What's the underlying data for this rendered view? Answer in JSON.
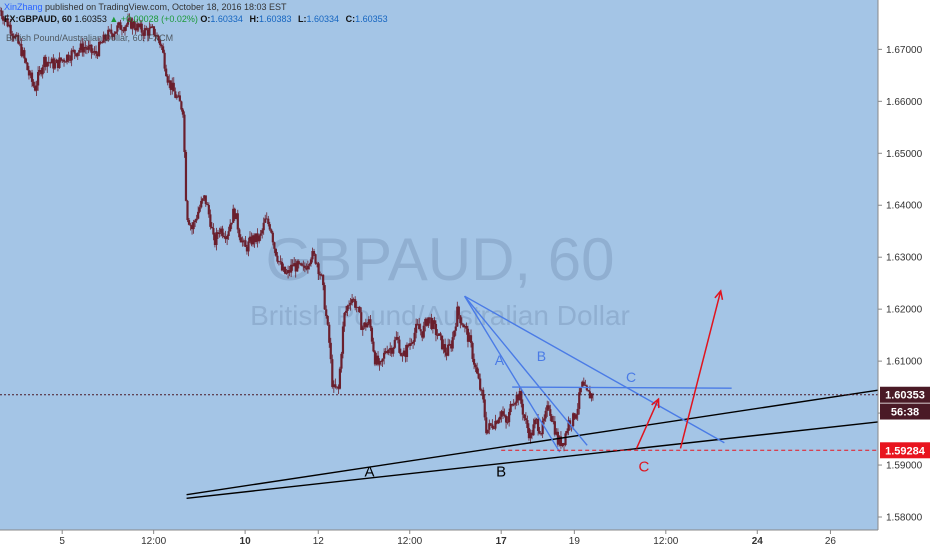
{
  "header": {
    "author": "XinZhang",
    "published": "published on TradingView.com, October 18, 2016 18:03 EST",
    "symbol": "FX:GBPAUD, 60",
    "last": "1.60353",
    "change": "▲ +0.00028 (+0.02%)",
    "open_label": "O:",
    "open": "1.60334",
    "high_label": "H:",
    "high": "1.60383",
    "low_label": "L:",
    "low": "1.60334",
    "close_label": "C:",
    "close": "1.60353",
    "series_legend": "British Pound/Australian Dollar, 60, FXCM"
  },
  "watermark": {
    "symbol": "GBPAUD, 60",
    "name": "British Pound/Australian Dollar"
  },
  "colors": {
    "plot_bg": "#a4c5e6",
    "candle": "#6a1f2d",
    "blue_lines": "#4a7be6",
    "red_arrows": "#e0141e",
    "support_lines": "#000000",
    "axis_bg": "#ffffff",
    "price_badge": "#4a1a26",
    "support_badge": "#e8141e"
  },
  "chart_data": {
    "type": "candlestick",
    "timeframe": "60",
    "y_axis": {
      "ticks": [
        1.58,
        1.59,
        1.6,
        1.61,
        1.62,
        1.63,
        1.64,
        1.65,
        1.66,
        1.67
      ],
      "tick_labels": [
        "1.58000",
        "1.59000",
        "1.60000",
        "1.61000",
        "1.62000",
        "1.63000",
        "1.64000",
        "1.65000",
        "1.66000",
        "1.67000"
      ],
      "range": [
        1.5775,
        1.6795
      ]
    },
    "x_axis": {
      "range_days": [
        3.3,
        27.3
      ],
      "ticks": [
        {
          "day": 5,
          "label": "5"
        },
        {
          "day": 7.5,
          "label": "12:00"
        },
        {
          "day": 10,
          "label": "10"
        },
        {
          "day": 12,
          "label": "12"
        },
        {
          "day": 14.5,
          "label": "12:00"
        },
        {
          "day": 17,
          "label": "17"
        },
        {
          "day": 19,
          "label": "19"
        },
        {
          "day": 21.5,
          "label": "12:00"
        },
        {
          "day": 24,
          "label": "24"
        },
        {
          "day": 26,
          "label": "26"
        }
      ]
    },
    "price_path": [
      [
        3.3,
        1.6775
      ],
      [
        3.6,
        1.674
      ],
      [
        3.9,
        1.6695
      ],
      [
        4.1,
        1.665
      ],
      [
        4.25,
        1.6625
      ],
      [
        4.5,
        1.668
      ],
      [
        4.8,
        1.667
      ],
      [
        5.2,
        1.669
      ],
      [
        5.6,
        1.6705
      ],
      [
        5.9,
        1.669
      ],
      [
        6.2,
        1.6725
      ],
      [
        6.6,
        1.6745
      ],
      [
        6.9,
        1.675
      ],
      [
        7.2,
        1.6735
      ],
      [
        7.5,
        1.6735
      ],
      [
        7.7,
        1.671
      ],
      [
        7.9,
        1.664
      ],
      [
        8.1,
        1.661
      ],
      [
        8.3,
        1.6585
      ],
      [
        8.4,
        1.6385
      ],
      [
        8.55,
        1.6355
      ],
      [
        8.75,
        1.6395
      ],
      [
        8.9,
        1.6415
      ],
      [
        9.05,
        1.637
      ],
      [
        9.15,
        1.6325
      ],
      [
        9.3,
        1.6355
      ],
      [
        9.5,
        1.6345
      ],
      [
        9.7,
        1.639
      ],
      [
        9.85,
        1.6345
      ],
      [
        10.0,
        1.6315
      ],
      [
        10.2,
        1.6335
      ],
      [
        10.4,
        1.6335
      ],
      [
        10.55,
        1.637
      ],
      [
        10.7,
        1.636
      ],
      [
        10.8,
        1.632
      ],
      [
        11.0,
        1.6275
      ],
      [
        11.15,
        1.6265
      ],
      [
        11.3,
        1.6285
      ],
      [
        11.6,
        1.6275
      ],
      [
        11.8,
        1.6305
      ],
      [
        11.95,
        1.6295
      ],
      [
        12.1,
        1.6255
      ],
      [
        12.3,
        1.6135
      ],
      [
        12.4,
        1.6045
      ],
      [
        12.55,
        1.6045
      ],
      [
        12.7,
        1.6185
      ],
      [
        12.9,
        1.6225
      ],
      [
        13.05,
        1.6205
      ],
      [
        13.2,
        1.6165
      ],
      [
        13.4,
        1.6175
      ],
      [
        13.55,
        1.6105
      ],
      [
        13.7,
        1.6085
      ],
      [
        13.85,
        1.6125
      ],
      [
        14.0,
        1.6125
      ],
      [
        14.15,
        1.6145
      ],
      [
        14.3,
        1.6105
      ],
      [
        14.5,
        1.6135
      ],
      [
        14.7,
        1.6165
      ],
      [
        14.85,
        1.6155
      ],
      [
        15.0,
        1.6185
      ],
      [
        15.15,
        1.6165
      ],
      [
        15.3,
        1.6145
      ],
      [
        15.5,
        1.6115
      ],
      [
        15.65,
        1.6135
      ],
      [
        15.8,
        1.6195
      ],
      [
        16.0,
        1.6165
      ],
      [
        16.15,
        1.6135
      ],
      [
        16.3,
        1.6085
      ],
      [
        16.5,
        1.6025
      ],
      [
        16.6,
        1.5965
      ],
      [
        16.7,
        1.5975
      ],
      [
        16.85,
        1.5985
      ],
      [
        17.0,
        1.6005
      ],
      [
        17.15,
        1.5975
      ],
      [
        17.3,
        1.6025
      ],
      [
        17.5,
        1.6035
      ],
      [
        17.65,
        1.5985
      ],
      [
        17.8,
        1.5955
      ],
      [
        17.95,
        1.5985
      ],
      [
        18.1,
        1.5965
      ],
      [
        18.3,
        1.6015
      ],
      [
        18.45,
        1.5975
      ],
      [
        18.55,
        1.5945
      ],
      [
        18.7,
        1.5945
      ],
      [
        18.85,
        1.5985
      ],
      [
        18.95,
        1.5985
      ],
      [
        19.1,
        1.6015
      ],
      [
        19.2,
        1.6055
      ],
      [
        19.35,
        1.6035
      ],
      [
        19.55,
        1.6035
      ]
    ],
    "annotations": {
      "support_line_A": {
        "label": "A",
        "from": [
          8.4,
          1.5843
        ],
        "to": [
          27.3,
          1.6044
        ]
      },
      "support_line_B": {
        "label": "B",
        "from": [
          8.4,
          1.5836
        ],
        "to": [
          27.3,
          1.5983
        ]
      },
      "triangle_top": {
        "from": [
          16.0,
          1.6225
        ],
        "to": [
          19.35,
          1.5938
        ]
      },
      "line_A": {
        "label": "A",
        "from": [
          16.0,
          1.6225
        ],
        "to": [
          18.6,
          1.5925
        ]
      },
      "line_B": {
        "label": "B",
        "from": [
          16.0,
          1.6225
        ],
        "to": [
          23.1,
          1.5943
        ]
      },
      "line_C": {
        "label": "C",
        "from": [
          17.3,
          1.605
        ],
        "to": [
          23.3,
          1.6048
        ]
      },
      "support_level": {
        "label": "C",
        "price": 1.59284,
        "from_day": 17.0,
        "to_day": 27.3
      },
      "arrow_1": {
        "from": [
          20.7,
          1.5932
        ],
        "to": [
          21.3,
          1.6027
        ]
      },
      "arrow_2": {
        "from": [
          21.9,
          1.5932
        ],
        "to": [
          23.0,
          1.6235
        ]
      },
      "current_price_line": 1.60353
    },
    "price_labels": [
      {
        "text": "1.60353",
        "price": 1.60353,
        "kind": "last"
      },
      {
        "text": "56:38",
        "price": 1.6003,
        "kind": "countdown"
      },
      {
        "text": "1.59284",
        "price": 1.59284,
        "kind": "level"
      }
    ]
  }
}
